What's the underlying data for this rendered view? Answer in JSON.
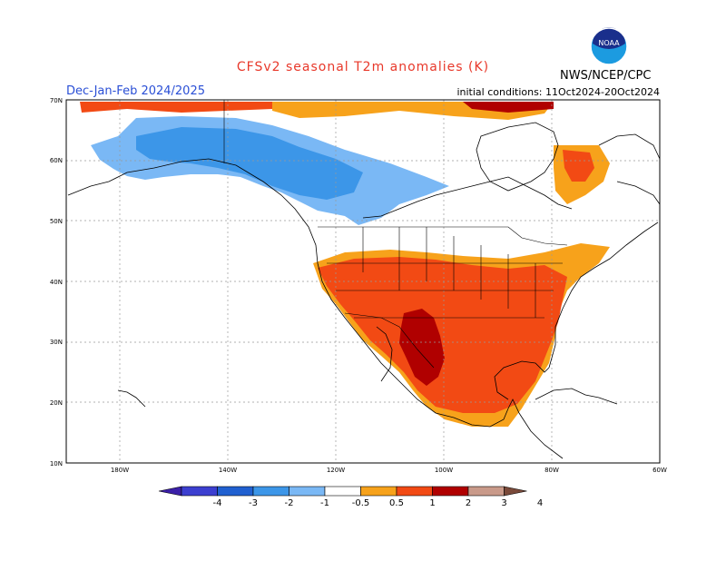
{
  "title": "CFSv2 seasonal T2m anomalies (K)",
  "season": "Dec-Jan-Feb 2024/2025",
  "initial_conditions": "initial conditions: 11Oct2024-20Oct2024",
  "agency": "NWS/NCEP/CPC",
  "logo_text": "NOAA",
  "lat_labels": [
    "70N",
    "60N",
    "50N",
    "40N",
    "30N",
    "20N",
    "10N"
  ],
  "lon_labels": [
    "180W",
    "140W",
    "120W",
    "100W",
    "80W",
    "60W"
  ],
  "colorbar": {
    "labels": [
      "-4",
      "-3",
      "-2",
      "-1",
      "-0.5",
      "0.5",
      "1",
      "2",
      "3",
      "4"
    ],
    "colors": [
      "#3b1fa8",
      "#3c3fd0",
      "#2060d0",
      "#3c96e8",
      "#7ab8f5",
      "#ffffff",
      "#f7a21b",
      "#f24a14",
      "#b00000",
      "#c99a8a",
      "#7a4a3a"
    ]
  },
  "colors": {
    "title": "#e8382a",
    "season": "#2a4fd6",
    "cold_light": "#7ab8f5",
    "cold": "#3c96e8",
    "warm_light": "#f7a21b",
    "warm": "#f24a14",
    "warm_dark": "#b00000"
  }
}
